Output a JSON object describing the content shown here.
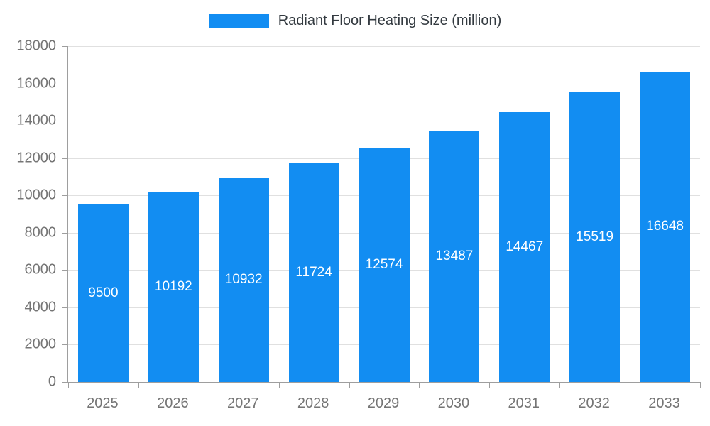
{
  "chart_data": {
    "type": "bar",
    "title": "Radiant Floor Heating Size (million)",
    "categories": [
      "2025",
      "2026",
      "2027",
      "2028",
      "2029",
      "2030",
      "2031",
      "2032",
      "2033"
    ],
    "series": [
      {
        "name": "Radiant Floor Heating Size (million)",
        "values": [
          9500,
          10192,
          10932,
          11724,
          12574,
          13487,
          14467,
          15519,
          16648
        ]
      }
    ],
    "xlabel": "",
    "ylabel": "",
    "ylim": [
      0,
      18000
    ],
    "ytick_step": 2000,
    "grid": true,
    "legend_position": "top-center",
    "bar_color": "#128df2",
    "value_label_color": "#ffffff",
    "axis_label_color": "#757575",
    "gridline_color": "#e0e0e0",
    "axis_line_color": "#9e9e9e",
    "background_color": "#ffffff"
  }
}
